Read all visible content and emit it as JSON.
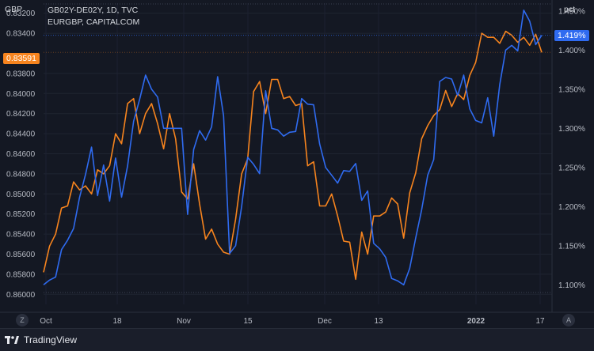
{
  "legend": {
    "line1": "GB02Y-DE02Y, 1D, TVC",
    "line2": "EURGBP, CAPITALCOM"
  },
  "left_axis": {
    "unit_label": "GBP",
    "current_value_label": "0.83591",
    "tick_labels": [
      "0.83200",
      "0.83400",
      "0.83800",
      "0.84000",
      "0.84200",
      "0.84400",
      "0.84600",
      "0.84800",
      "0.85000",
      "0.85200",
      "0.85400",
      "0.85600",
      "0.85800",
      "0.86000"
    ]
  },
  "right_axis": {
    "unit_label": "pct",
    "current_value_label": "1.419%",
    "tick_labels": [
      "1.450%",
      "1.400%",
      "1.350%",
      "1.300%",
      "1.250%",
      "1.200%",
      "1.150%",
      "1.100%"
    ]
  },
  "x_axis": {
    "tick_labels": [
      "Oct",
      "18",
      "Nov",
      "15",
      "Dec",
      "13",
      "2022",
      "17"
    ]
  },
  "buttons": {
    "left_round": "Z",
    "right_round": "A"
  },
  "footer": {
    "brand": "TradingView"
  },
  "colors": {
    "background": "#141823",
    "orange": "#f7841e",
    "blue": "#2f6bf0",
    "grid": "#222838"
  },
  "chart_data": {
    "type": "line",
    "left_axis_scale": "inverted",
    "left_ylim": [
      0.861,
      0.831
    ],
    "right_ylim": [
      1.075,
      1.46
    ],
    "series": [
      {
        "name": "EURGBP, CAPITALCOM",
        "axis": "left",
        "color": "#f7841e",
        "values": [
          0.8578,
          0.8552,
          0.854,
          0.8514,
          0.8512,
          0.8488,
          0.8496,
          0.8492,
          0.85,
          0.8476,
          0.848,
          0.8472,
          0.844,
          0.845,
          0.841,
          0.8405,
          0.844,
          0.842,
          0.841,
          0.843,
          0.8455,
          0.842,
          0.8445,
          0.8498,
          0.8505,
          0.847,
          0.851,
          0.8545,
          0.8535,
          0.855,
          0.8558,
          0.856,
          0.8525,
          0.848,
          0.8465,
          0.8398,
          0.8388,
          0.842,
          0.8386,
          0.8386,
          0.8405,
          0.8403,
          0.8412,
          0.841,
          0.8472,
          0.8468,
          0.8512,
          0.8512,
          0.85,
          0.8522,
          0.8547,
          0.8548,
          0.8585,
          0.8538,
          0.856,
          0.8522,
          0.8522,
          0.8518,
          0.8504,
          0.851,
          0.8544,
          0.8499,
          0.8479,
          0.8445,
          0.8432,
          0.8422,
          0.8416,
          0.8397,
          0.8413,
          0.84,
          0.8406,
          0.8382,
          0.8369,
          0.834,
          0.8344,
          0.8344,
          0.835,
          0.8338,
          0.8342,
          0.8349,
          0.8344,
          0.8352,
          0.8341,
          0.8359
        ]
      },
      {
        "name": "GB02Y-DE02Y, 1D, TVC",
        "axis": "right",
        "color": "#2f6bf0",
        "values": [
          1.1,
          1.106,
          1.11,
          1.145,
          1.157,
          1.172,
          1.212,
          1.241,
          1.276,
          1.214,
          1.253,
          1.207,
          1.262,
          1.212,
          1.252,
          1.309,
          1.337,
          1.368,
          1.35,
          1.34,
          1.3,
          1.3,
          1.3,
          1.3,
          1.19,
          1.273,
          1.297,
          1.285,
          1.302,
          1.366,
          1.316,
          1.14,
          1.15,
          1.2,
          1.263,
          1.254,
          1.242,
          1.348,
          1.3,
          1.298,
          1.29,
          1.295,
          1.296,
          1.338,
          1.331,
          1.33,
          1.28,
          1.25,
          1.24,
          1.23,
          1.246,
          1.245,
          1.255,
          1.208,
          1.22,
          1.153,
          1.146,
          1.135,
          1.108,
          1.105,
          1.1,
          1.121,
          1.16,
          1.196,
          1.24,
          1.26,
          1.36,
          1.365,
          1.363,
          1.342,
          1.368,
          1.325,
          1.31,
          1.307,
          1.339,
          1.29,
          1.356,
          1.4,
          1.406,
          1.399,
          1.451,
          1.437,
          1.407,
          1.419
        ]
      }
    ]
  }
}
